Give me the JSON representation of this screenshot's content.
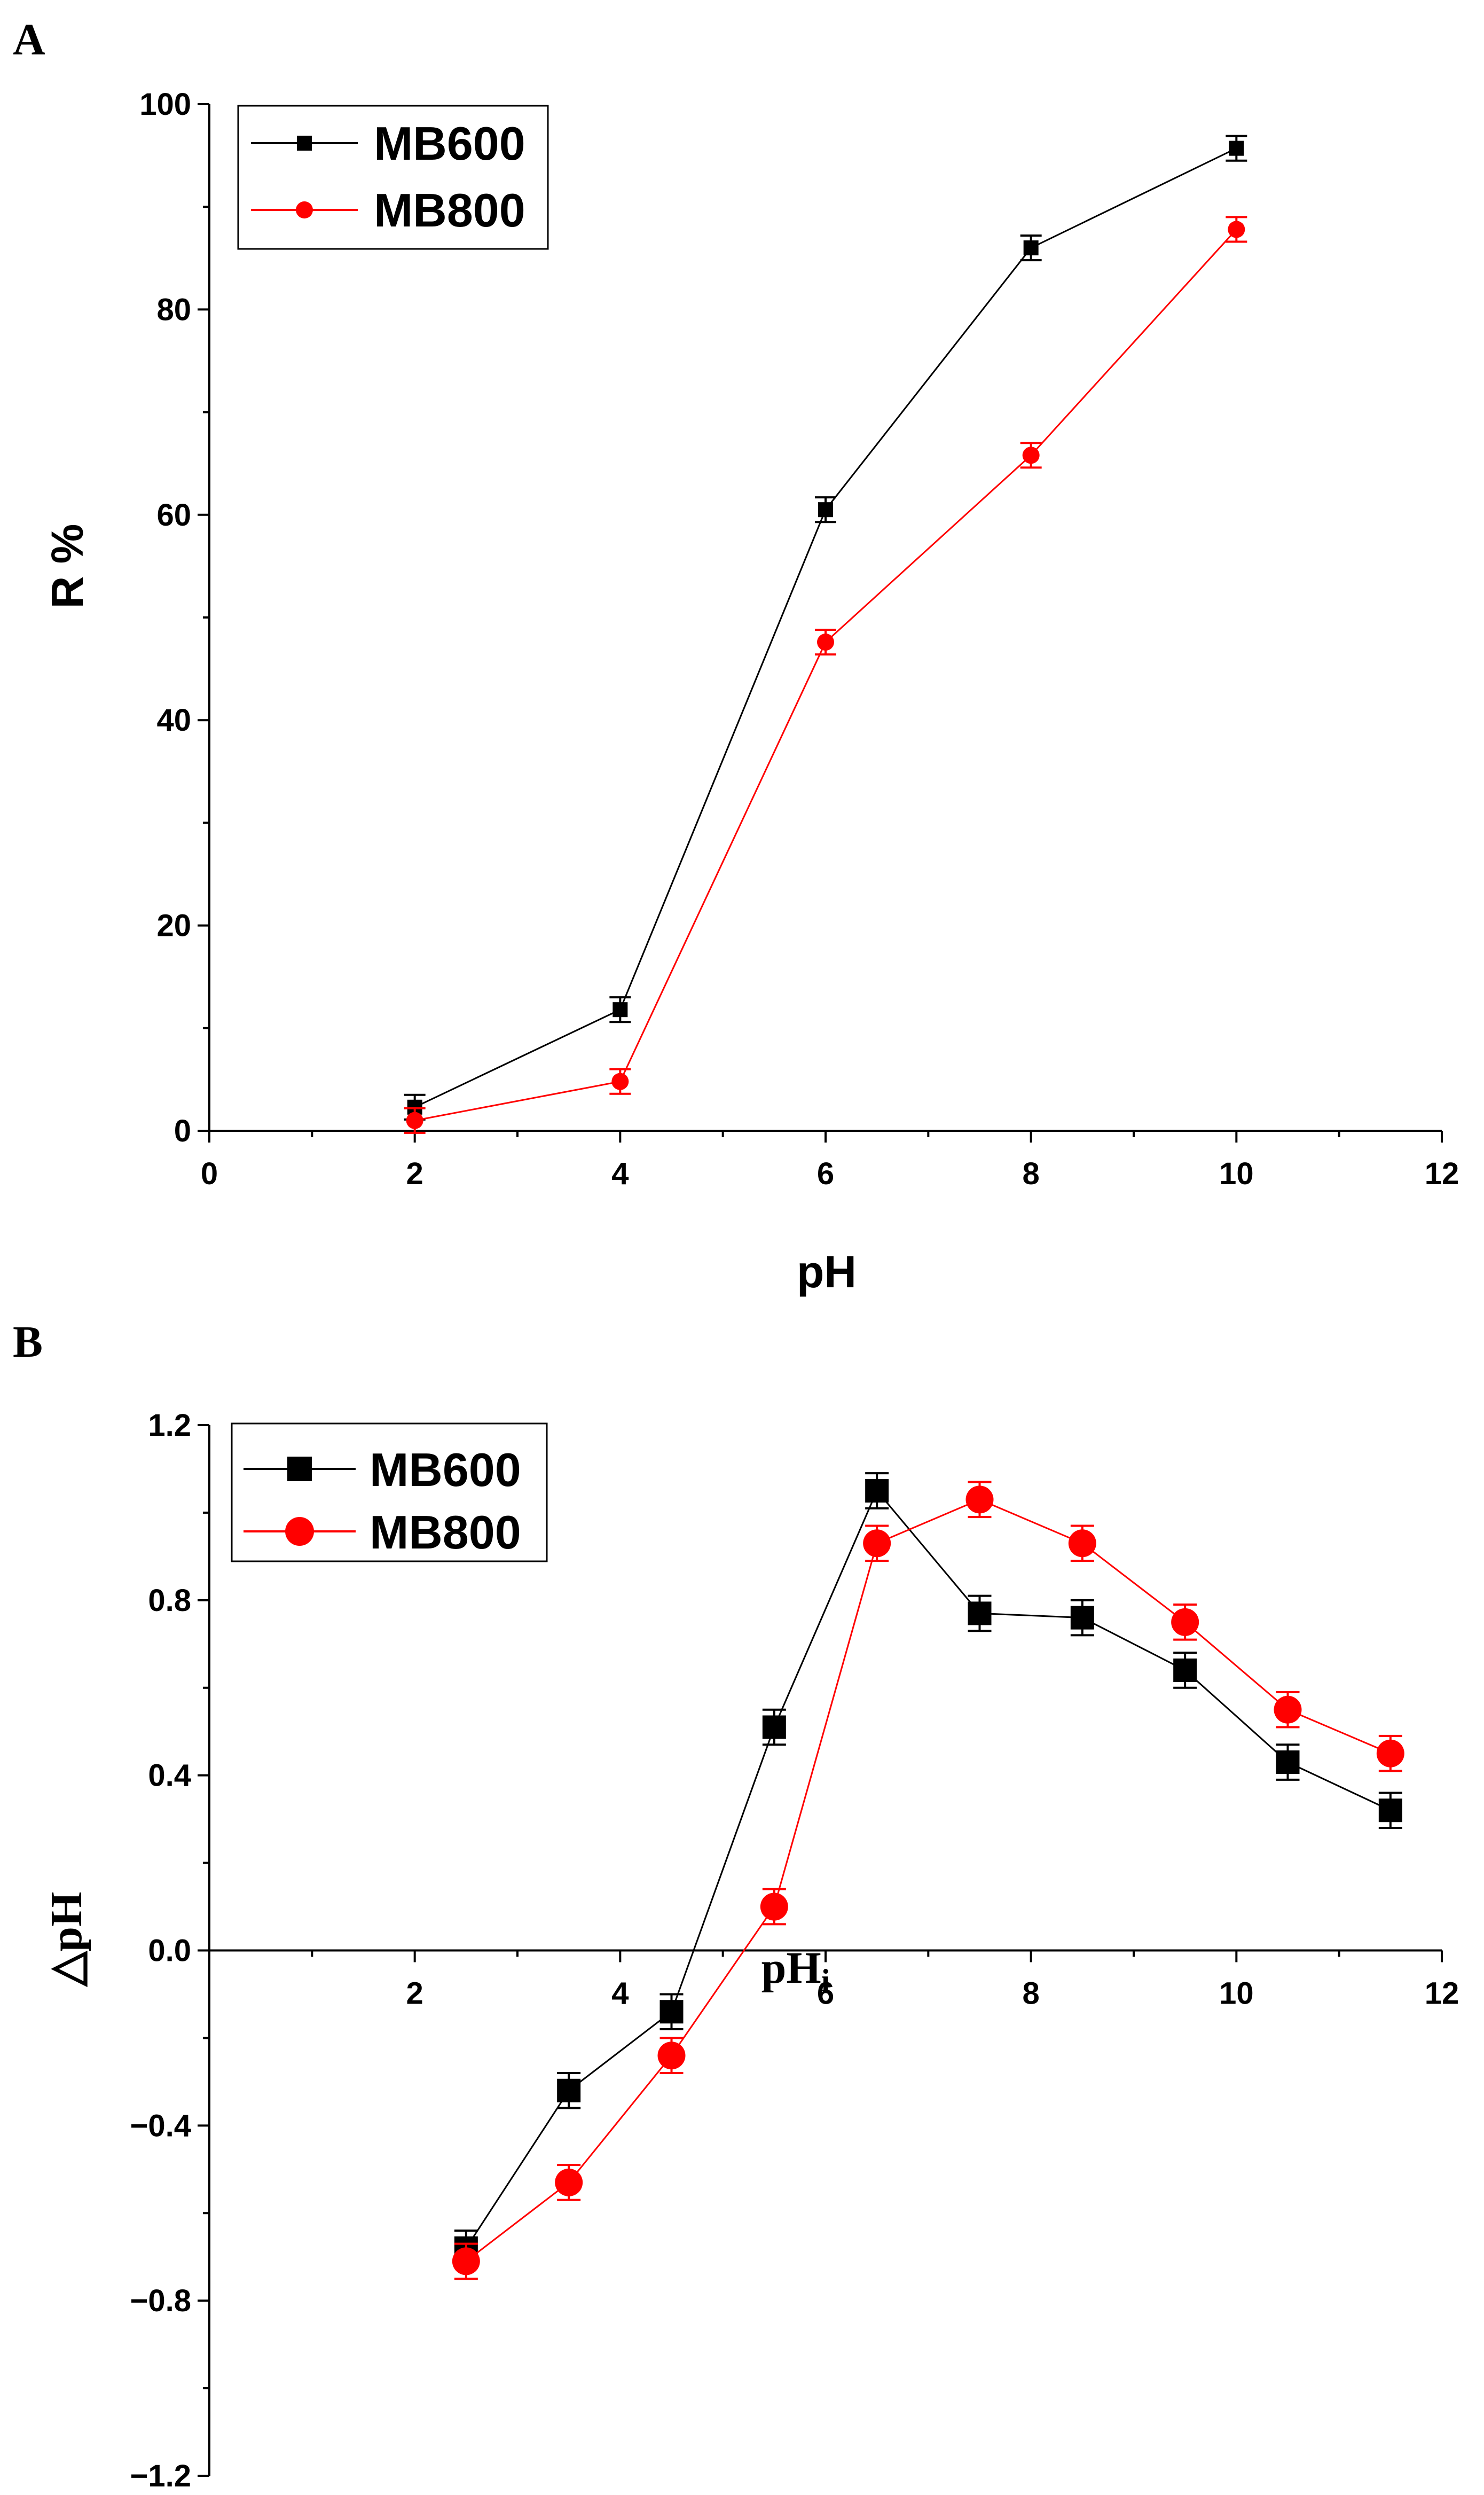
{
  "chart_data": [
    {
      "panel": "A",
      "type": "line",
      "xlabel": "pH",
      "ylabel": "R %",
      "xlim": [
        0,
        12
      ],
      "ylim": [
        0,
        100
      ],
      "xticks": [
        0,
        2,
        4,
        6,
        8,
        10,
        12
      ],
      "yticks": [
        0,
        20,
        40,
        60,
        80,
        100
      ],
      "legend_position": "top-left",
      "series": [
        {
          "name": "MB600",
          "color": "#000000",
          "marker": "square",
          "x": [
            2,
            4,
            6,
            8,
            10
          ],
          "y": [
            2.3,
            11.8,
            60.5,
            86.0,
            95.7
          ],
          "err": [
            1.2,
            1.2,
            1.2,
            1.2,
            1.2
          ]
        },
        {
          "name": "MB800",
          "color": "#ff0000",
          "marker": "circle",
          "x": [
            2,
            4,
            6,
            8,
            10
          ],
          "y": [
            1.0,
            4.8,
            47.6,
            65.8,
            87.8
          ],
          "err": [
            1.2,
            1.2,
            1.2,
            1.2,
            1.2
          ]
        }
      ]
    },
    {
      "panel": "B",
      "type": "line",
      "xlabel": "pH",
      "xlabel_sub": "i",
      "ylabel": "△pH",
      "xlim": [
        0,
        12
      ],
      "ylim": [
        -1.2,
        1.2
      ],
      "xticks": [
        2,
        4,
        6,
        8,
        10,
        12
      ],
      "yticks": [
        -1.2,
        -0.8,
        -0.4,
        0.0,
        0.4,
        0.8,
        1.2
      ],
      "ytick_labels": [
        "−1.2",
        "−0.8",
        "−0.4",
        "0.0",
        "0.4",
        "0.8",
        "1.2"
      ],
      "legend_position": "top-left",
      "series": [
        {
          "name": "MB600",
          "color": "#000000",
          "marker": "square",
          "x": [
            2.5,
            3.5,
            4.5,
            5.5,
            6.5,
            7.5,
            8.5,
            9.5,
            10.5,
            11.5
          ],
          "y": [
            -0.68,
            -0.32,
            -0.14,
            0.51,
            1.05,
            0.77,
            0.76,
            0.64,
            0.43,
            0.32
          ],
          "err": [
            0.04,
            0.04,
            0.04,
            0.04,
            0.04,
            0.04,
            0.04,
            0.04,
            0.04,
            0.04
          ]
        },
        {
          "name": "MB800",
          "color": "#ff0000",
          "marker": "circle",
          "x": [
            2.5,
            3.5,
            4.5,
            5.5,
            6.5,
            7.5,
            8.5,
            9.5,
            10.5,
            11.5
          ],
          "y": [
            -0.71,
            -0.53,
            -0.24,
            0.1,
            0.93,
            1.03,
            0.93,
            0.75,
            0.55,
            0.45
          ],
          "err": [
            0.04,
            0.04,
            0.04,
            0.04,
            0.04,
            0.04,
            0.04,
            0.04,
            0.04,
            0.04
          ]
        }
      ]
    }
  ]
}
